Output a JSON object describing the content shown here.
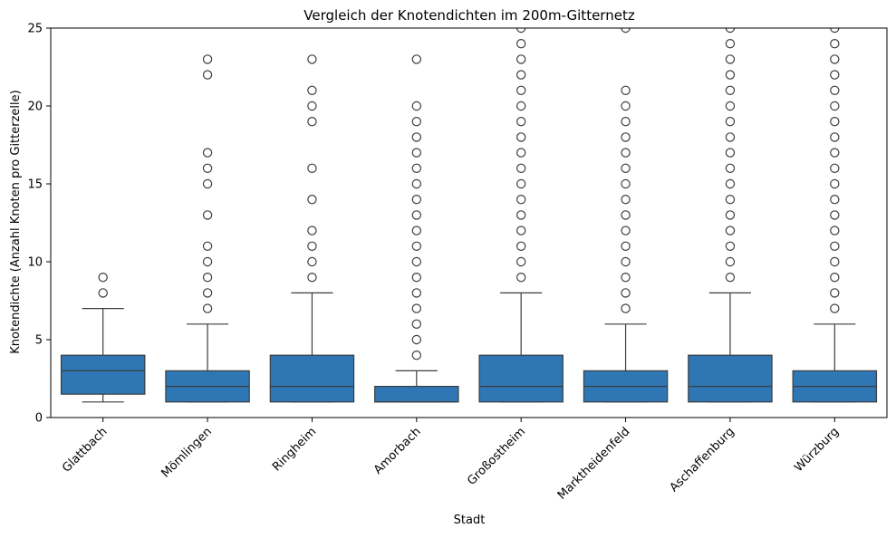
{
  "chart_data": {
    "type": "box",
    "title": "Vergleich der Knotendichten im 200m-Gitternetz",
    "xlabel": "Stadt",
    "ylabel": "Knotendichte (Anzahl Knoten pro Gitterzelle)",
    "ylim": [
      0,
      25
    ],
    "yticks": [
      0,
      5,
      10,
      15,
      20,
      25
    ],
    "grid": false,
    "box_color": "#2f77b4",
    "line_color": "#3d3d3d",
    "categories": [
      "Glattbach",
      "Mömlingen",
      "Ringheim",
      "Amorbach",
      "Großostheim",
      "Marktheidenfeld",
      "Aschaffenburg",
      "Würzburg"
    ],
    "boxes": [
      {
        "category": "Glattbach",
        "whisker_low": 1,
        "q1": 1.5,
        "median": 3,
        "q3": 4,
        "whisker_high": 7,
        "outliers": [
          8,
          9
        ]
      },
      {
        "category": "Mömlingen",
        "whisker_low": 1,
        "q1": 1,
        "median": 2,
        "q3": 3,
        "whisker_high": 6,
        "outliers": [
          7,
          8,
          9,
          10,
          11,
          13,
          15,
          16,
          17,
          22,
          23
        ]
      },
      {
        "category": "Ringheim",
        "whisker_low": 1,
        "q1": 1,
        "median": 2,
        "q3": 4,
        "whisker_high": 8,
        "outliers": [
          9,
          10,
          11,
          12,
          14,
          16,
          19,
          20,
          21,
          23
        ]
      },
      {
        "category": "Amorbach",
        "whisker_low": 1,
        "q1": 1,
        "median": 1,
        "q3": 2,
        "whisker_high": 3,
        "outliers": [
          4,
          5,
          6,
          7,
          8,
          9,
          10,
          11,
          12,
          13,
          14,
          15,
          16,
          17,
          18,
          19,
          20,
          23
        ]
      },
      {
        "category": "Großostheim",
        "whisker_low": 1,
        "q1": 1,
        "median": 2,
        "q3": 4,
        "whisker_high": 8,
        "outliers": [
          9,
          10,
          11,
          12,
          13,
          14,
          15,
          16,
          17,
          18,
          19,
          20,
          21,
          22,
          23,
          24,
          25
        ]
      },
      {
        "category": "Marktheidenfeld",
        "whisker_low": 1,
        "q1": 1,
        "median": 2,
        "q3": 3,
        "whisker_high": 6,
        "outliers": [
          7,
          8,
          9,
          10,
          11,
          12,
          13,
          14,
          15,
          16,
          17,
          18,
          19,
          20,
          21,
          25
        ]
      },
      {
        "category": "Aschaffenburg",
        "whisker_low": 1,
        "q1": 1,
        "median": 2,
        "q3": 4,
        "whisker_high": 8,
        "outliers": [
          9,
          10,
          11,
          12,
          13,
          14,
          15,
          16,
          17,
          18,
          19,
          20,
          21,
          22,
          23,
          24,
          25
        ]
      },
      {
        "category": "Würzburg",
        "whisker_low": 1,
        "q1": 1,
        "median": 2,
        "q3": 3,
        "whisker_high": 6,
        "outliers": [
          7,
          8,
          9,
          10,
          11,
          12,
          13,
          14,
          15,
          16,
          17,
          18,
          19,
          20,
          21,
          22,
          23,
          24,
          25
        ]
      }
    ]
  }
}
